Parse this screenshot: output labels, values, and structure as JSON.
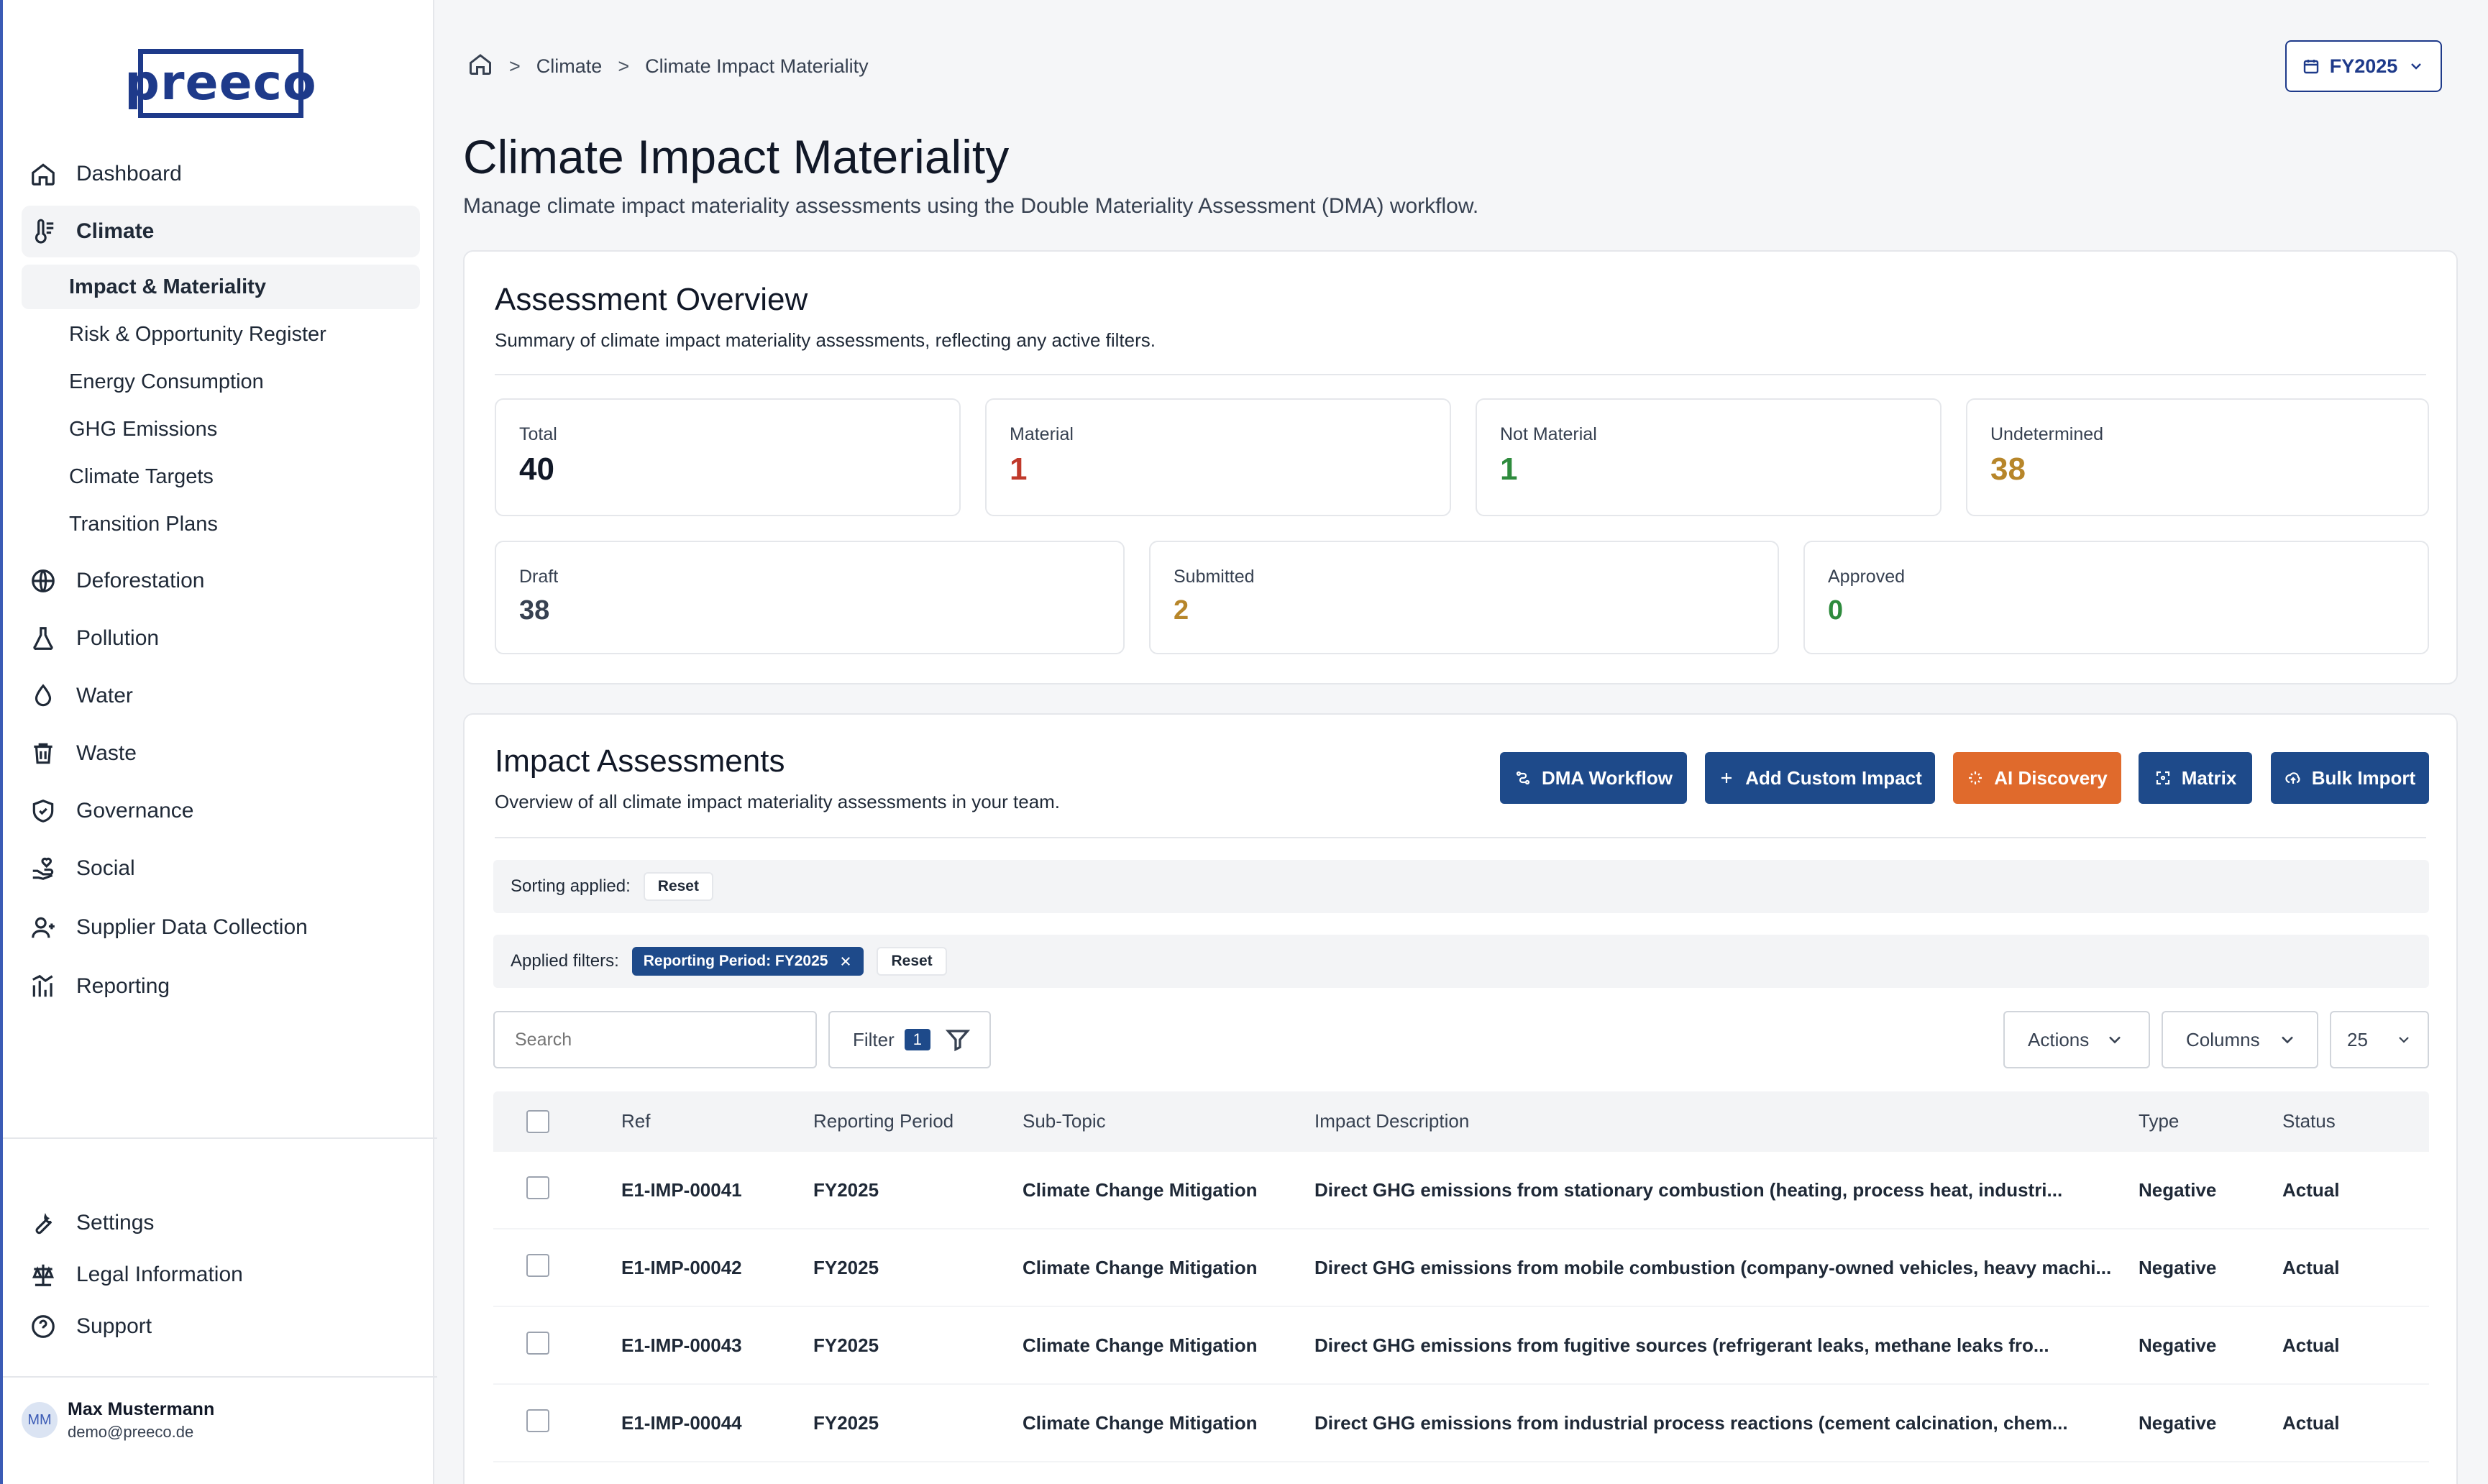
{
  "brand": {
    "logo_text": "preeco"
  },
  "sidebar": {
    "items": [
      {
        "label": "Dashboard",
        "icon": "home-icon"
      },
      {
        "label": "Climate",
        "icon": "thermometer-icon",
        "active": true
      },
      {
        "label": "Deforestation",
        "icon": "globe-icon"
      },
      {
        "label": "Pollution",
        "icon": "flask-icon"
      },
      {
        "label": "Water",
        "icon": "droplet-icon"
      },
      {
        "label": "Waste",
        "icon": "trash-icon"
      },
      {
        "label": "Governance",
        "icon": "shield-icon"
      },
      {
        "label": "Social",
        "icon": "hand-heart-icon"
      },
      {
        "label": "Supplier Data Collection",
        "icon": "users-icon"
      },
      {
        "label": "Reporting",
        "icon": "chart-icon"
      }
    ],
    "climate_sub": [
      {
        "label": "Impact & Materiality",
        "active": true
      },
      {
        "label": "Risk & Opportunity Register"
      },
      {
        "label": "Energy Consumption"
      },
      {
        "label": "GHG Emissions"
      },
      {
        "label": "Climate Targets"
      },
      {
        "label": "Transition Plans"
      }
    ],
    "bottom": [
      {
        "label": "Settings",
        "icon": "wrench-icon"
      },
      {
        "label": "Legal Information",
        "icon": "scale-icon"
      },
      {
        "label": "Support",
        "icon": "help-circle-icon"
      }
    ],
    "user": {
      "initials": "MM",
      "name": "Max Mustermann",
      "email": "demo@preeco.de"
    }
  },
  "breadcrumb": {
    "level1": "Climate",
    "level2": "Climate Impact Materiality",
    "sep": ">"
  },
  "period_selector": {
    "value": "FY2025"
  },
  "page": {
    "title": "Climate Impact Materiality",
    "subtitle": "Manage climate impact materiality assessments using the Double Materiality Assessment (DMA) workflow."
  },
  "overview": {
    "title": "Assessment Overview",
    "subtitle": "Summary of climate impact materiality assessments, reflecting any active filters.",
    "stats": {
      "total": {
        "label": "Total",
        "value": "40",
        "color": "#111827"
      },
      "material": {
        "label": "Material",
        "value": "1",
        "color": "#c0392b"
      },
      "not_material": {
        "label": "Not Material",
        "value": "1",
        "color": "#2e8b3d"
      },
      "undetermined": {
        "label": "Undetermined",
        "value": "38",
        "color": "#b7862a"
      },
      "draft": {
        "label": "Draft",
        "value": "38",
        "color": "#374151"
      },
      "submitted": {
        "label": "Submitted",
        "value": "2",
        "color": "#b7862a"
      },
      "approved": {
        "label": "Approved",
        "value": "0",
        "color": "#2e8b3d"
      }
    }
  },
  "assessments": {
    "title": "Impact Assessments",
    "subtitle": "Overview of all climate impact materiality assessments in your team.",
    "buttons": {
      "dma": "DMA Workflow",
      "add": "Add Custom Impact",
      "ai": "AI Discovery",
      "matrix": "Matrix",
      "bulk": "Bulk Import"
    },
    "sorting": {
      "label": "Sorting applied:",
      "reset": "Reset"
    },
    "filters": {
      "label": "Applied filters:",
      "chip": "Reporting Period: FY2025",
      "reset": "Reset"
    },
    "search_placeholder": "Search",
    "filter_label": "Filter",
    "filter_count": "1",
    "actions_label": "Actions",
    "columns_label": "Columns",
    "page_size": "25",
    "columns": [
      "Ref",
      "Reporting Period",
      "Sub-Topic",
      "Impact Description",
      "Type",
      "Status"
    ],
    "rows": [
      {
        "ref": "E1-IMP-00041",
        "period": "FY2025",
        "subtopic": "Climate Change Mitigation",
        "desc": "Direct GHG emissions from stationary combustion (heating, process heat, industri...",
        "type": "Negative",
        "status": "Actual"
      },
      {
        "ref": "E1-IMP-00042",
        "period": "FY2025",
        "subtopic": "Climate Change Mitigation",
        "desc": "Direct GHG emissions from mobile combustion (company-owned vehicles, heavy machi...",
        "type": "Negative",
        "status": "Actual"
      },
      {
        "ref": "E1-IMP-00043",
        "period": "FY2025",
        "subtopic": "Climate Change Mitigation",
        "desc": "Direct GHG emissions from fugitive sources (refrigerant leaks, methane leaks fro...",
        "type": "Negative",
        "status": "Actual"
      },
      {
        "ref": "E1-IMP-00044",
        "period": "FY2025",
        "subtopic": "Climate Change Mitigation",
        "desc": "Direct GHG emissions from industrial process reactions (cement calcination, chem...",
        "type": "Negative",
        "status": "Actual"
      }
    ]
  },
  "colors": {
    "brand": "#1e3a8a",
    "primary_button": "#1e4a8a",
    "accent_orange": "#e06a2c"
  }
}
